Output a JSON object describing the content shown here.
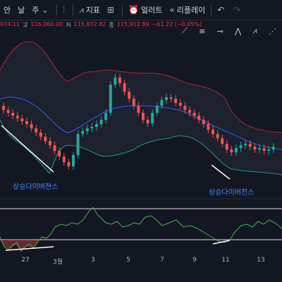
{
  "toolbar": {
    "tab_partial": "안",
    "timeframe": "날",
    "timeframe2": "주",
    "indicators_label": "지표",
    "alert_label": "얼러트",
    "replay_label": "리플레이"
  },
  "quote": {
    "open_value": "974.11",
    "high_label": "고",
    "high_value": "116,060.00",
    "low_label": "저",
    "low_value": "115,872.82",
    "close_label": "종",
    "close_value": "115,912.89",
    "change": "−61.22 (−0.05%)"
  },
  "annotations": {
    "left": "상승다이버전스",
    "right": "상승다이버전스"
  },
  "xaxis": {
    "labels": [
      "27",
      "3월",
      "3",
      "5",
      "7",
      "9",
      "11",
      "13"
    ]
  },
  "colors": {
    "bull": "#26a69a",
    "bear": "#ef5350",
    "band": "#b22833",
    "middle": "#2962ff",
    "lower": "#1b9e77",
    "rsi": "#4caf50",
    "annotation": "#4a8cff"
  },
  "icons": [
    "candles-icon",
    "indicators-icon",
    "alert-icon",
    "replay-icon",
    "undo-icon",
    "redo-icon",
    "trendline-icon",
    "fib-icon",
    "pattern-icon"
  ]
}
